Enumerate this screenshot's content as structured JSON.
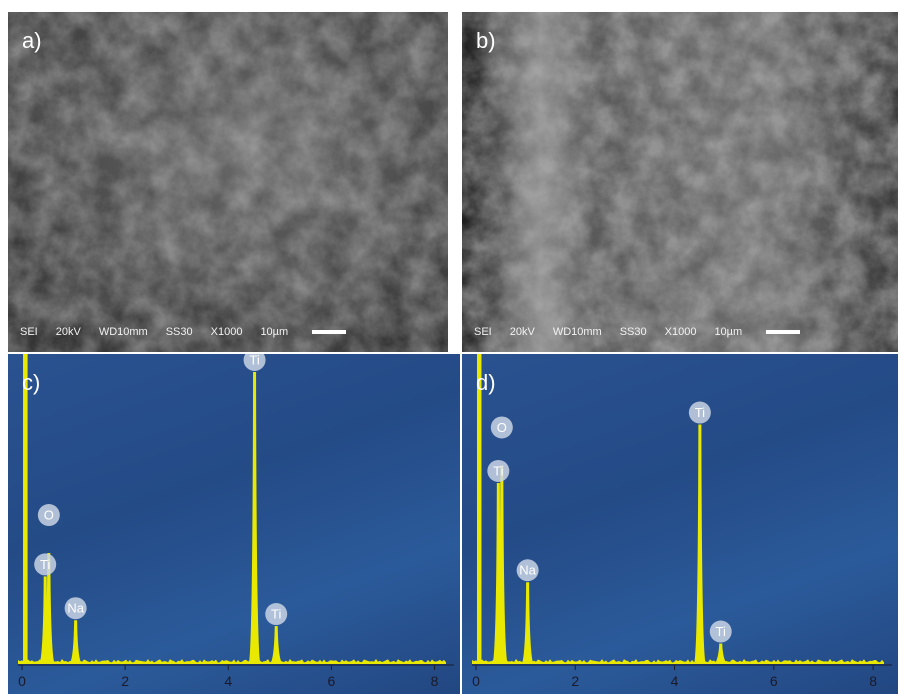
{
  "sem_panels": [
    {
      "label": "a)",
      "info": {
        "mode": "SEI",
        "voltage": "20kV",
        "wd": "WD10mm",
        "ss": "SS30",
        "mag": "X1000",
        "scale": "10µm"
      }
    },
    {
      "label": "b)",
      "info": {
        "mode": "SEI",
        "voltage": "20kV",
        "wd": "WD10mm",
        "ss": "SS30",
        "mag": "X1000",
        "scale": "10µm"
      }
    }
  ],
  "eds_panels": [
    {
      "label": "c)",
      "x_ticks": [
        "0",
        "2",
        "4",
        "6",
        "8"
      ],
      "peaks": [
        {
          "element": "O",
          "energy": 0.52,
          "intensity": 0.38
        },
        {
          "element": "Ti",
          "energy": 0.45,
          "intensity": 0.3
        },
        {
          "element": "Na",
          "energy": 1.04,
          "intensity": 0.15
        },
        {
          "element": "Ti",
          "energy": 4.51,
          "intensity": 1.0
        },
        {
          "element": "Ti",
          "energy": 4.93,
          "intensity": 0.13
        }
      ]
    },
    {
      "label": "d)",
      "x_ticks": [
        "0",
        "2",
        "4",
        "6",
        "8"
      ],
      "peaks": [
        {
          "element": "O",
          "energy": 0.52,
          "intensity": 0.68
        },
        {
          "element": "Ti",
          "energy": 0.45,
          "intensity": 0.62
        },
        {
          "element": "Na",
          "energy": 1.04,
          "intensity": 0.28
        },
        {
          "element": "Ti",
          "energy": 4.51,
          "intensity": 0.82
        },
        {
          "element": "Ti",
          "energy": 4.93,
          "intensity": 0.07
        }
      ]
    }
  ],
  "colors": {
    "eds_background": "#2a5290",
    "spectrum": "#e8e800",
    "marker": "#c9d4e4"
  }
}
